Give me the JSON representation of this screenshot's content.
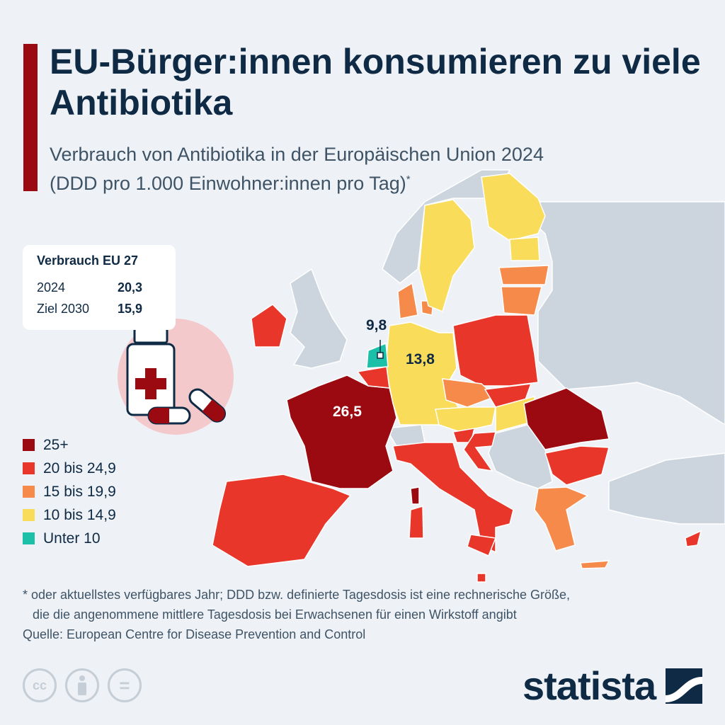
{
  "header": {
    "title": "EU-Bürger:innen konsumieren zu viele Antibiotika",
    "subtitle_line1": "Verbrauch von Antibiotika in der Europäischen Union 2024",
    "subtitle_line2": "(DDD pro 1.000 Einwohner:innen pro Tag)",
    "subtitle_mark": "*"
  },
  "summary_box": {
    "heading": "Verbrauch EU 27",
    "rows": [
      {
        "label": "2024",
        "value": "20,3"
      },
      {
        "label": "Ziel 2030",
        "value": "15,9"
      }
    ]
  },
  "legend": [
    {
      "label": "25+",
      "color": "#9b0a10"
    },
    {
      "label": "20 bis 24,9",
      "color": "#e8372a"
    },
    {
      "label": "15 bis 19,9",
      "color": "#f58a4a"
    },
    {
      "label": "10 bis 14,9",
      "color": "#f8dc5a"
    },
    {
      "label": "Unter 10",
      "color": "#1cbfa8"
    }
  ],
  "map_labels": {
    "netherlands": "9,8",
    "germany": "13,8",
    "france": "26,5"
  },
  "footer": {
    "note_line1": "* oder aktuellstes verfügbares Jahr; DDD bzw. definierte Tagesdosis ist eine rechnerische Größe,",
    "note_line2": "die die angenommene mittlere Tagesdosis bei Erwachsenen für einen Wirkstoff angibt",
    "source": "Quelle: European Centre for Disease Prevention and Control"
  },
  "license_icons": [
    "cc-icon",
    "attribution-icon",
    "no-derivatives-icon"
  ],
  "license_text": {
    "cc": "cc",
    "nd": "="
  },
  "brand": "statista"
}
